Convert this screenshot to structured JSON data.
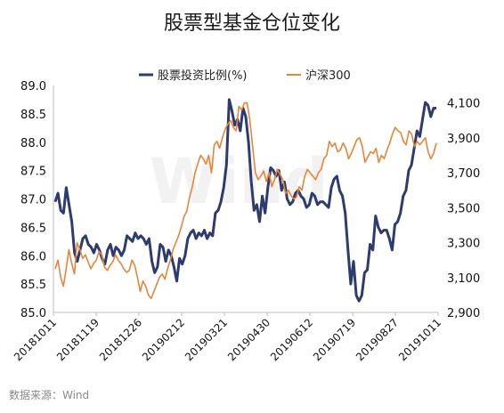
{
  "source_note": "数据来源：Wind",
  "chart_data": {
    "type": "line",
    "title": "股票型基金仓位变化",
    "watermark": "Wind",
    "legend_position": "top-center",
    "x_ticks": [
      "20181011",
      "20181119",
      "20181226",
      "20190212",
      "20190321",
      "20190430",
      "20190612",
      "20190719",
      "20190827",
      "20191011"
    ],
    "ylim_left": [
      85.0,
      89.0
    ],
    "yticks_left": [
      "85.0",
      "85.5",
      "86.0",
      "86.5",
      "87.0",
      "87.5",
      "88.0",
      "88.5",
      "89.0"
    ],
    "ylim_right": [
      2900,
      4200
    ],
    "yticks_right": [
      "2,900",
      "3,100",
      "3,300",
      "3,500",
      "3,700",
      "3,900",
      "4,100"
    ],
    "grid": false,
    "series": [
      {
        "name": "股票投资比例(%)",
        "axis": "left",
        "color": "#2e3b6e",
        "values": [
          86.95,
          87.1,
          86.8,
          86.75,
          87.2,
          86.9,
          86.6,
          86.05,
          85.9,
          86.1,
          86.3,
          86.35,
          86.2,
          86.15,
          86.05,
          86.2,
          86.1,
          85.95,
          85.85,
          86.1,
          86.2,
          86.0,
          86.15,
          86.1,
          86.0,
          86.1,
          86.35,
          86.3,
          86.25,
          86.4,
          86.3,
          86.35,
          86.3,
          86.2,
          86.3,
          85.9,
          85.7,
          85.8,
          86.2,
          86.15,
          85.9,
          86.1,
          86.0,
          85.8,
          85.55,
          85.95,
          85.85,
          86.0,
          86.3,
          86.4,
          86.45,
          86.3,
          86.4,
          86.35,
          86.45,
          86.3,
          86.4,
          86.35,
          86.75,
          86.8,
          86.95,
          87.2,
          87.6,
          88.75,
          88.55,
          88.3,
          88.4,
          88.2,
          88.6,
          88.45,
          88.0,
          87.3,
          86.8,
          86.9,
          86.6,
          87.05,
          86.75,
          87.2,
          87.55,
          87.5,
          87.4,
          87.5,
          87.15,
          87.3,
          87.0,
          86.9,
          86.95,
          87.1,
          87.15,
          87.05,
          87.0,
          86.85,
          86.9,
          87.1,
          87.05,
          86.9,
          86.95,
          86.95,
          86.9,
          86.85,
          87.2,
          87.35,
          87.4,
          87.15,
          87.05,
          86.75,
          86.1,
          85.5,
          85.9,
          85.3,
          85.2,
          85.3,
          85.7,
          85.75,
          86.2,
          86.1,
          86.7,
          86.5,
          86.4,
          86.45,
          86.45,
          86.3,
          86.1,
          86.55,
          86.6,
          86.75,
          87.05,
          87.15,
          87.5,
          87.6,
          87.9,
          88.2,
          88.1,
          88.4,
          88.7,
          88.65,
          88.45,
          88.6,
          88.6
        ],
        "dates": null
      },
      {
        "name": "沪深300",
        "axis": "right",
        "color": "#e8853a",
        "values": [
          3150,
          3200,
          3100,
          3050,
          3150,
          3260,
          3180,
          3120,
          3300,
          3260,
          3210,
          3230,
          3190,
          3150,
          3180,
          3200,
          3250,
          3230,
          3160,
          3140,
          3170,
          3190,
          3230,
          3200,
          3180,
          3150,
          3130,
          3140,
          3200,
          3170,
          3100,
          3020,
          3080,
          3050,
          3000,
          2980,
          3020,
          3060,
          3100,
          3120,
          3090,
          3150,
          3200,
          3260,
          3300,
          3340,
          3390,
          3450,
          3480,
          3560,
          3620,
          3700,
          3750,
          3800,
          3780,
          3750,
          3800,
          3700,
          3860,
          3880,
          3840,
          3900,
          3950,
          3980,
          4000,
          3960,
          3940,
          4080,
          4060,
          4100,
          4100,
          4000,
          3850,
          3700,
          3660,
          3680,
          3710,
          3650,
          3700,
          3620,
          3660,
          3720,
          3690,
          3660,
          3580,
          3600,
          3570,
          3550,
          3560,
          3620,
          3600,
          3680,
          3720,
          3700,
          3680,
          3660,
          3700,
          3720,
          3780,
          3800,
          3880,
          3850,
          3870,
          3820,
          3830,
          3870,
          3840,
          3780,
          3810,
          3850,
          3890,
          3900,
          3850,
          3760,
          3790,
          3820,
          3810,
          3840,
          3760,
          3800,
          3780,
          3830,
          3870,
          3920,
          3960,
          3940,
          3930,
          3880,
          3860,
          3940,
          3920,
          3850,
          3880,
          3860,
          3880,
          3900,
          3820,
          3780,
          3810,
          3870
        ]
      }
    ]
  }
}
